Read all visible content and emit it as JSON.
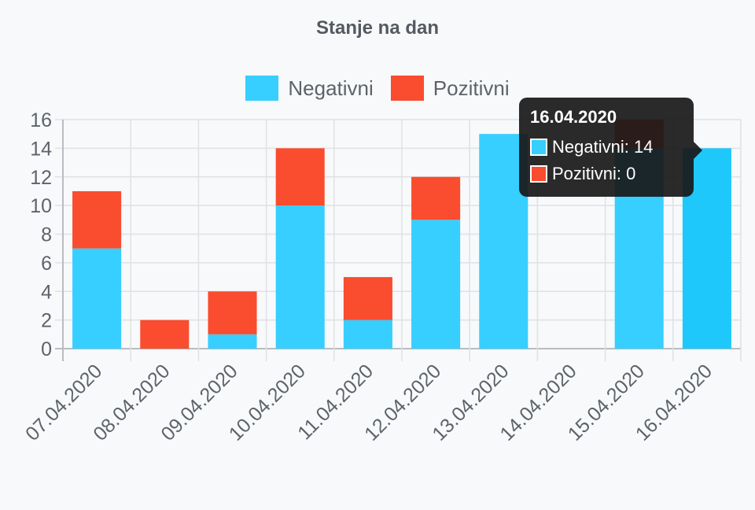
{
  "chart_data": {
    "type": "bar",
    "stacked": true,
    "title": "Stanje na dan",
    "categories": [
      "07.04.2020",
      "08.04.2020",
      "09.04.2020",
      "10.04.2020",
      "11.04.2020",
      "12.04.2020",
      "13.04.2020",
      "14.04.2020",
      "15.04.2020",
      "16.04.2020"
    ],
    "series": [
      {
        "name": "Negativni",
        "color": "#36cfff",
        "values": [
          7,
          0,
          1,
          10,
          2,
          9,
          15,
          0,
          14,
          14
        ]
      },
      {
        "name": "Pozitivni",
        "color": "#fa4c2e",
        "values": [
          4,
          2,
          3,
          4,
          3,
          3,
          0,
          0,
          2,
          0
        ]
      }
    ],
    "ylim": [
      0,
      16
    ],
    "yticks": [
      0,
      2,
      4,
      6,
      8,
      10,
      12,
      14,
      16
    ],
    "grid": true,
    "legend_position": "top-center",
    "highlighted_category_index": 9
  },
  "tooltip": {
    "title": "16.04.2020",
    "rows": [
      {
        "label": "Negativni: 14",
        "color": "#36cfff"
      },
      {
        "label": "Pozitivni: 0",
        "color": "#fa4c2e"
      }
    ]
  }
}
